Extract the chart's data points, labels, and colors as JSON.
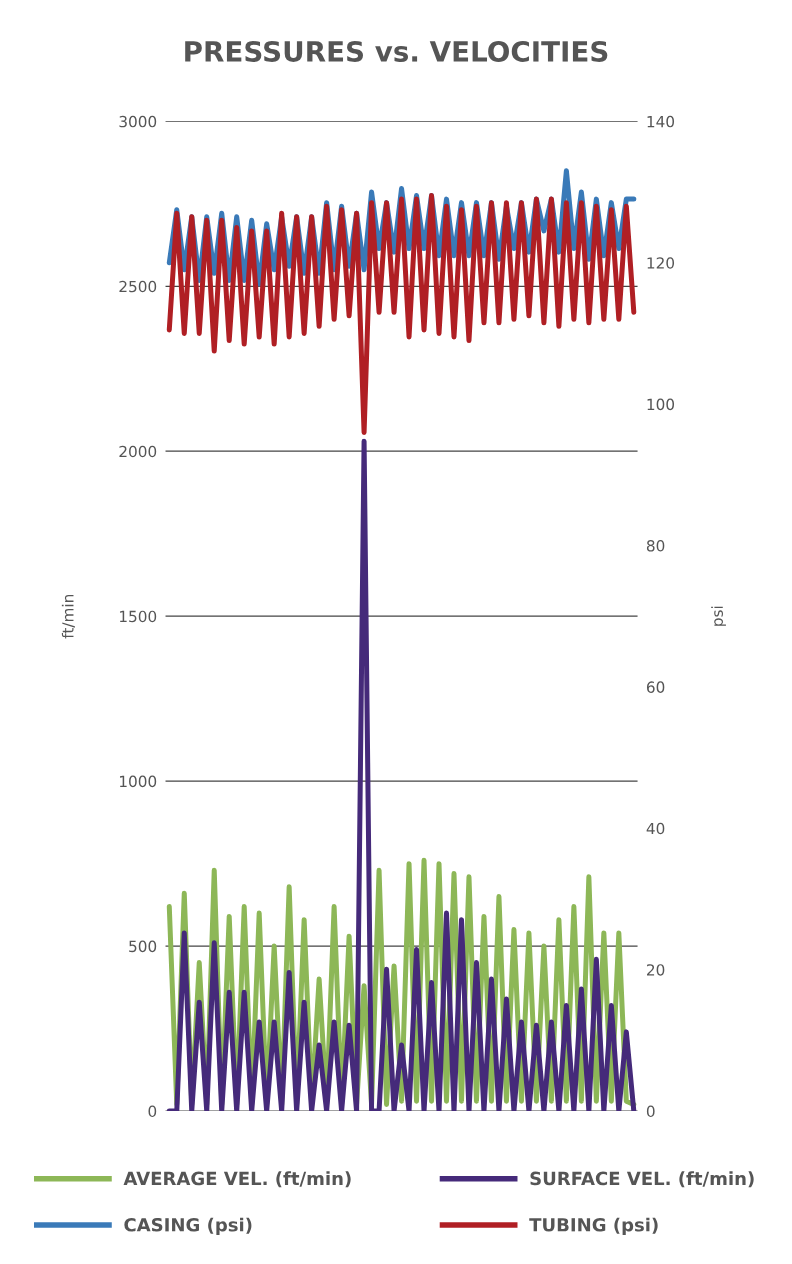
{
  "chart_data": {
    "type": "line",
    "title": "PRESSURES vs. VELOCITIES",
    "ylabel": "ft/min",
    "y2label": "psi",
    "categories": [
      null,
      null,
      null,
      null,
      null,
      null,
      null,
      null,
      null,
      null,
      null,
      null,
      null,
      null,
      null,
      null,
      null,
      null,
      null,
      null,
      null,
      null,
      null,
      null,
      null,
      null,
      null,
      null,
      null,
      null,
      null,
      null,
      null,
      null,
      null,
      null,
      null,
      null,
      null,
      null,
      null,
      null,
      null,
      null,
      null,
      null,
      null,
      null,
      null,
      null,
      null,
      null,
      null,
      null,
      null,
      null,
      null,
      null,
      null,
      null,
      null,
      null,
      null
    ],
    "series": [
      {
        "name": "AVERAGE VEL. (ft/min)",
        "color": "#8db757",
        "values": [
          620,
          20,
          660,
          20,
          450,
          20,
          730,
          20,
          590,
          20,
          620,
          20,
          600,
          20,
          500,
          20,
          680,
          20,
          580,
          20,
          400,
          20,
          620,
          20,
          530,
          20,
          380,
          20,
          730,
          20,
          440,
          30,
          750,
          30,
          760,
          30,
          750,
          30,
          720,
          30,
          710,
          30,
          590,
          30,
          650,
          30,
          550,
          30,
          540,
          30,
          500,
          30,
          580,
          30,
          620,
          30,
          710,
          30,
          540,
          30,
          540,
          30,
          20
        ]
      },
      {
        "name": "SURFACE VEL. (ft/min)",
        "color": "#452a7a",
        "values": [
          0,
          0,
          540,
          0,
          330,
          0,
          510,
          0,
          360,
          0,
          360,
          0,
          270,
          0,
          270,
          0,
          420,
          0,
          330,
          0,
          200,
          0,
          270,
          0,
          260,
          0,
          2030,
          0,
          0,
          430,
          0,
          200,
          0,
          490,
          0,
          390,
          0,
          600,
          0,
          580,
          0,
          450,
          0,
          400,
          0,
          340,
          0,
          270,
          0,
          260,
          0,
          270,
          0,
          320,
          0,
          370,
          0,
          460,
          0,
          320,
          0,
          240,
          0
        ]
      },
      {
        "name": "CASING (psi)",
        "color": "#3a7ab8",
        "axis": "y2",
        "values": [
          120,
          127.5,
          119,
          126.5,
          117.5,
          126.5,
          118.5,
          127,
          117.5,
          126.5,
          117.5,
          126,
          117,
          125.5,
          119,
          126.5,
          119.5,
          126.5,
          118.5,
          126.5,
          118.5,
          128.5,
          119,
          128,
          119.5,
          127,
          119,
          130,
          122,
          128.5,
          121.5,
          130.5,
          122,
          129.5,
          122,
          129.5,
          121,
          129,
          121,
          128.5,
          121,
          128.5,
          121,
          128.5,
          120.5,
          128,
          122,
          128.5,
          121.5,
          129,
          124.5,
          129,
          121.5,
          133,
          122,
          130,
          120.5,
          129,
          121,
          128.5,
          122,
          129,
          129
        ]
      },
      {
        "name": "TUBING (psi)",
        "color": "#b01f24",
        "axis": "y2",
        "values": [
          110.5,
          127,
          110,
          126.5,
          110,
          126,
          107.5,
          126,
          109,
          125,
          108.5,
          124.5,
          109.5,
          124.5,
          108.5,
          127,
          109.5,
          126.5,
          110,
          126.5,
          111,
          128,
          112,
          127.5,
          112.5,
          127,
          96,
          128.5,
          113,
          128.5,
          113,
          129,
          109.5,
          129,
          110.5,
          129.5,
          110,
          128,
          109.5,
          127.5,
          109,
          128,
          111.5,
          128.5,
          111.5,
          128.5,
          112,
          128.5,
          112.5,
          129,
          111.5,
          129,
          111,
          128.5,
          112,
          128.5,
          111.5,
          128,
          112,
          127.5,
          112,
          128,
          113
        ]
      }
    ],
    "ylim": [
      0,
      3000
    ],
    "yticks": [
      0,
      500,
      1000,
      1500,
      2000,
      2500,
      3000
    ],
    "y2lim": [
      0,
      140
    ],
    "y2ticks": [
      0,
      20,
      40,
      60,
      80,
      100,
      120,
      140
    ],
    "grid": "y",
    "legend": "bottom",
    "line_style": "solid",
    "marker": "none",
    "tick_labels": "y"
  }
}
